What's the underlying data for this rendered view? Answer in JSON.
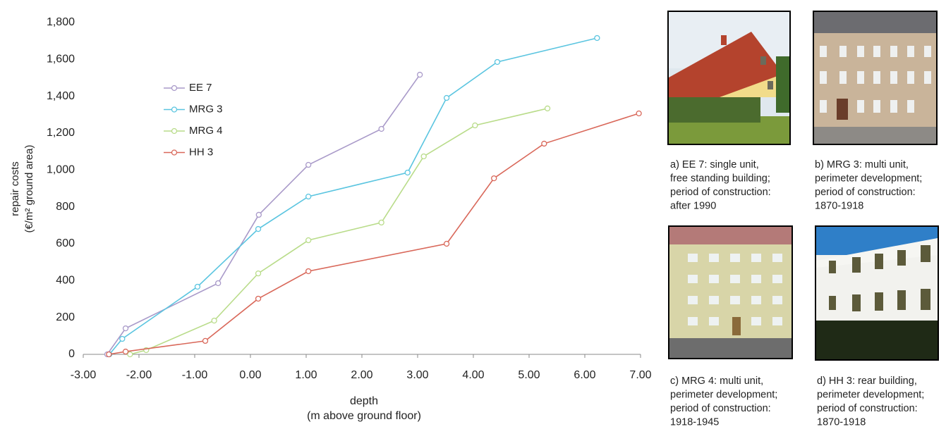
{
  "chart_data": {
    "type": "line",
    "y_label": [
      "repair costs",
      "(€/m² ground area)"
    ],
    "x_label": [
      "depth",
      "(m above ground floor)"
    ],
    "xlim": [
      -3,
      7
    ],
    "xticks": [
      {
        "value": -3,
        "label": "-3.00"
      },
      {
        "value": -2,
        "label": "-2.00"
      },
      {
        "value": -1,
        "label": "-1.00"
      },
      {
        "value": 0,
        "label": "0.00"
      },
      {
        "value": 1,
        "label": "1.00"
      },
      {
        "value": 2,
        "label": "2.00"
      },
      {
        "value": 3,
        "label": "3.00"
      },
      {
        "value": 4,
        "label": "4.00"
      },
      {
        "value": 5,
        "label": "5.00"
      },
      {
        "value": 6,
        "label": "6.00"
      },
      {
        "value": 7,
        "label": "7.00"
      }
    ],
    "ylim": [
      0,
      1800
    ],
    "yticks": [
      0,
      200,
      400,
      600,
      800,
      {
        "value": 1000,
        "label": "1,000"
      },
      {
        "value": 1200,
        "label": "1,200"
      },
      {
        "value": 1400,
        "label": "1,400"
      },
      {
        "value": 1600,
        "label": "1,600"
      },
      {
        "value": 1800,
        "label": "1,800"
      }
    ],
    "grid": false,
    "series": [
      {
        "name": "EE 7",
        "color": "#a99ac9",
        "x": [
          -2.57,
          -2.24,
          -0.58,
          0.15,
          1.04,
          2.35,
          3.04
        ],
        "values": [
          0,
          141,
          386,
          757,
          1028,
          1223,
          1517
        ]
      },
      {
        "name": "MRG 3",
        "color": "#5bc5e0",
        "x": [
          -2.53,
          -2.3,
          -0.95,
          0.14,
          1.04,
          2.82,
          3.52,
          4.43,
          6.22
        ],
        "values": [
          0,
          84,
          367,
          680,
          856,
          986,
          1391,
          1586,
          1716
        ]
      },
      {
        "name": "MRG 4",
        "color": "#b9dc8a",
        "x": [
          -2.16,
          -1.87,
          -0.65,
          0.14,
          1.04,
          2.35,
          3.11,
          4.03,
          5.33
        ],
        "values": [
          0,
          23,
          183,
          439,
          619,
          715,
          1074,
          1242,
          1334
        ]
      },
      {
        "name": "HH 3",
        "color": "#d9685a",
        "x": [
          -2.54,
          -2.24,
          -0.81,
          0.14,
          1.04,
          3.52,
          4.37,
          5.27,
          6.97
        ],
        "values": [
          0,
          15,
          73,
          302,
          451,
          600,
          955,
          1143,
          1307
        ]
      }
    ]
  },
  "photos": [
    {
      "caption": [
        "a) EE 7: single unit,",
        "free standing building;",
        "period of construction:",
        "after 1990"
      ]
    },
    {
      "caption": [
        "b) MRG 3: multi unit,",
        "perimeter development;",
        "period of construction:",
        "1870-1918"
      ]
    },
    {
      "caption": [
        "c) MRG 4: multi unit,",
        "perimeter development;",
        "period of construction:",
        "1918-1945"
      ]
    },
    {
      "caption": [
        "d) HH 3: rear building,",
        "perimeter development;",
        "period of construction:",
        "1870-1918"
      ]
    }
  ]
}
